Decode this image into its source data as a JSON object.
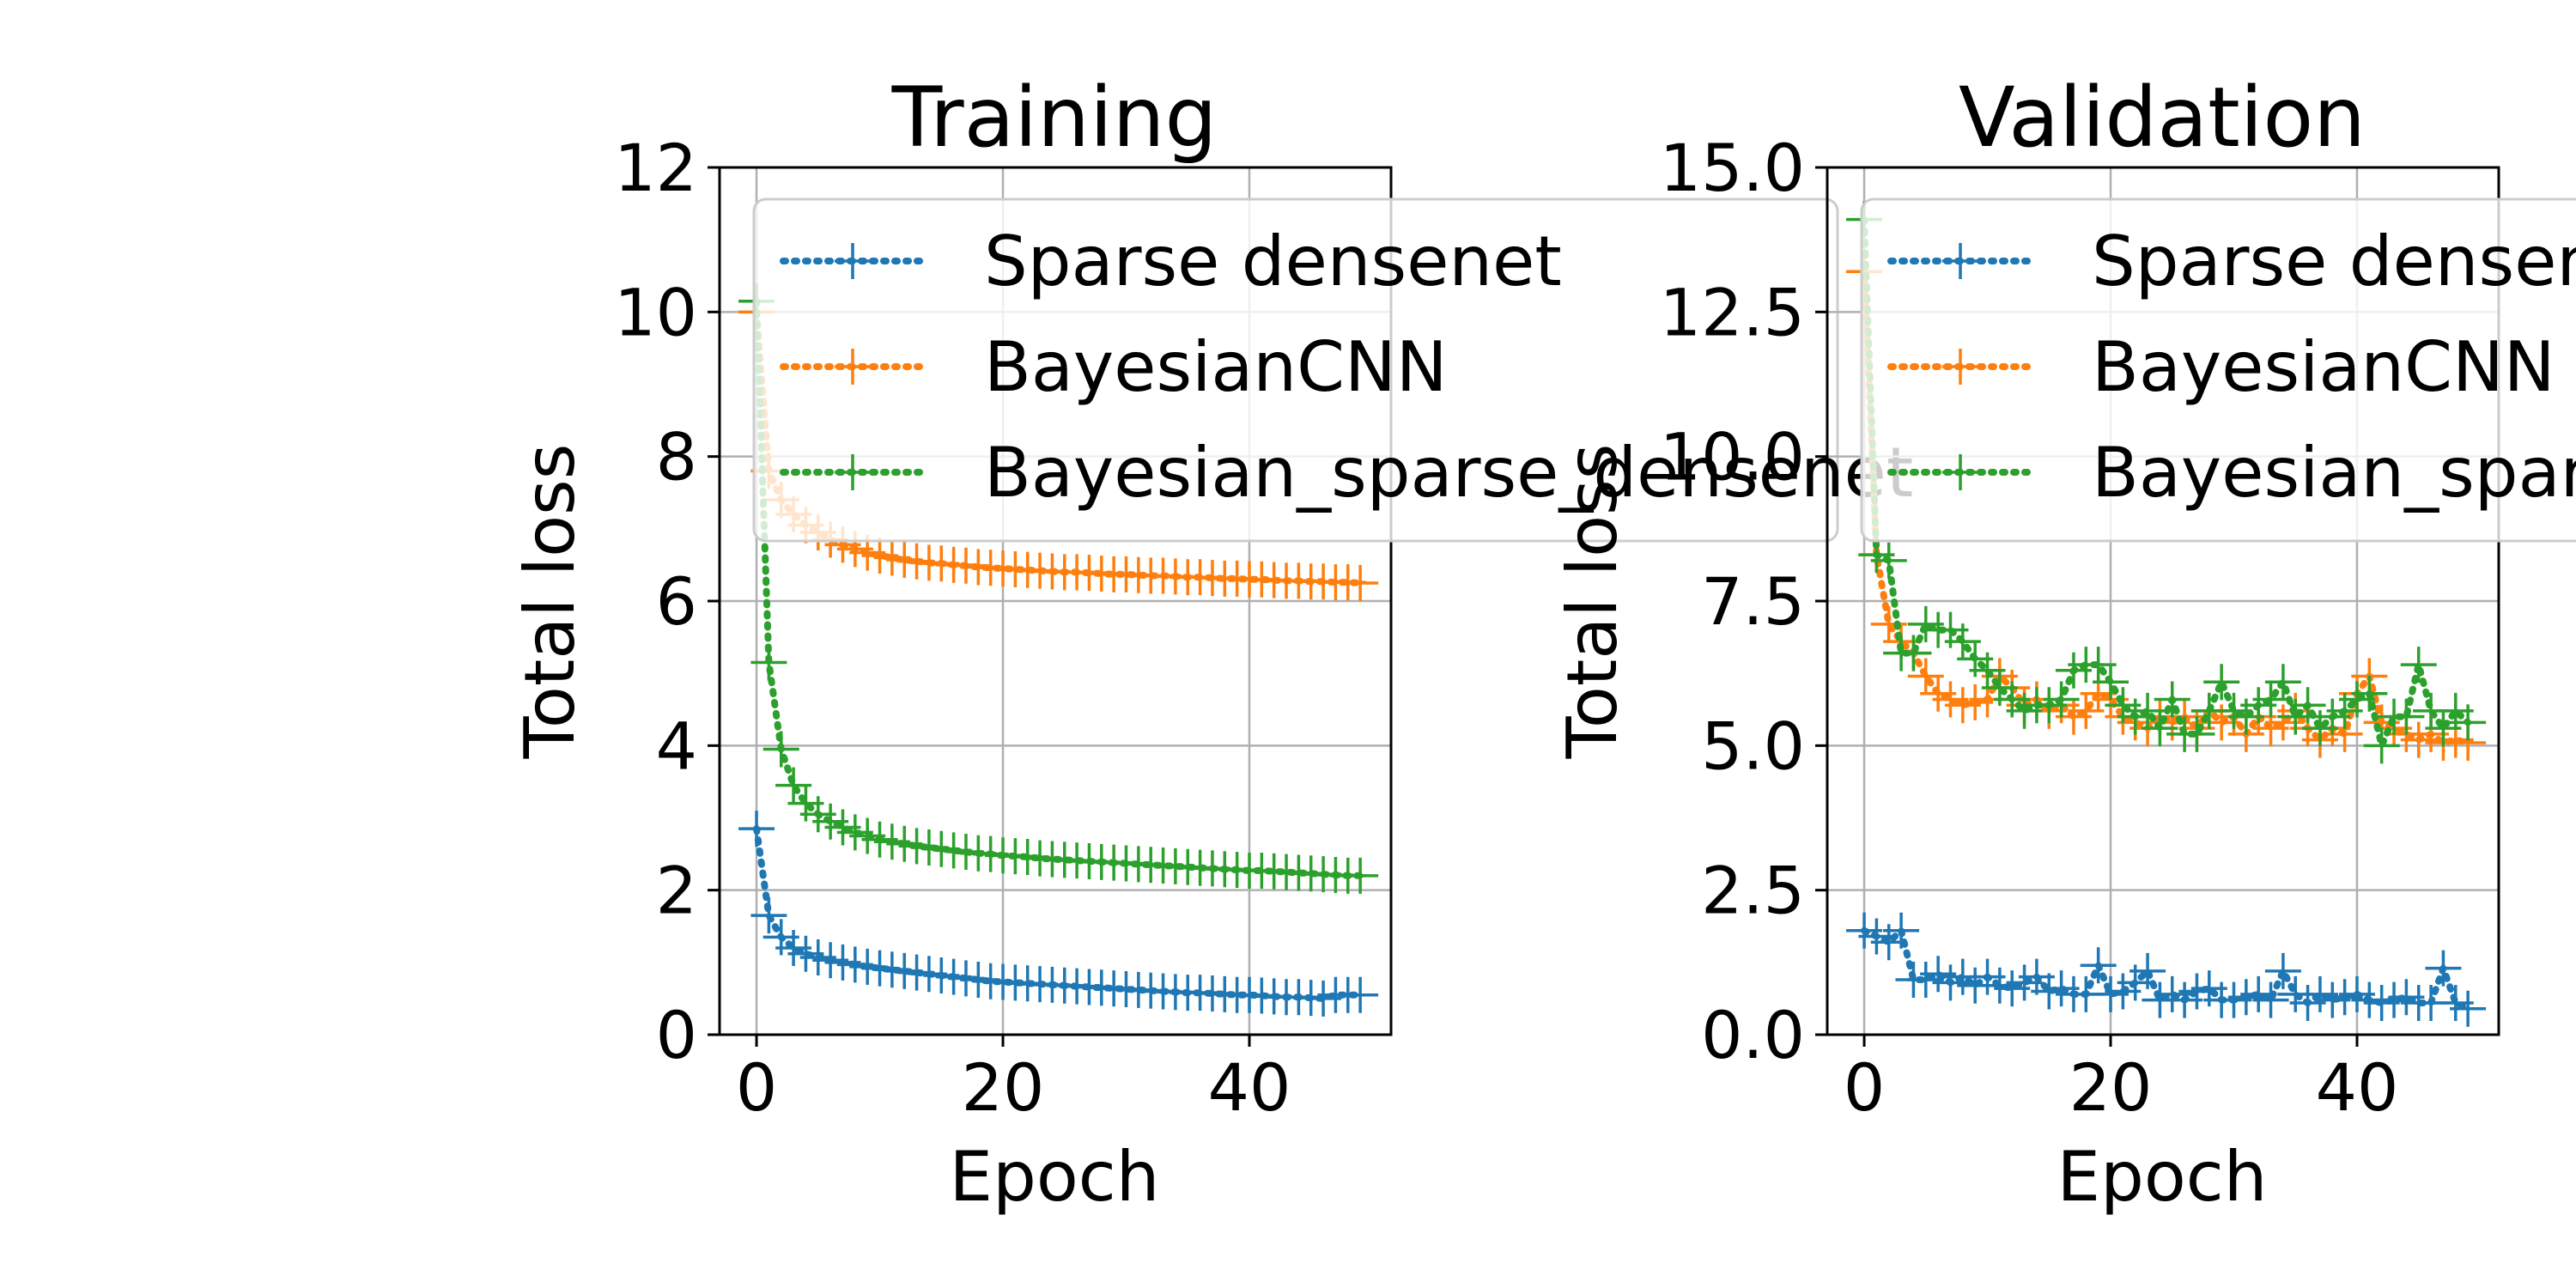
{
  "colors": {
    "sparse_densenet": "#1f77b4",
    "bayesian_cnn": "#ff7f0e",
    "bayesian_sparse_densenet": "#2ca02c",
    "grid": "#b0b0b0",
    "axes": "#000000"
  },
  "chart_data": [
    {
      "type": "line",
      "title": "Training",
      "xlabel": "Epoch",
      "ylabel": "Total loss",
      "xlim": [
        -3,
        51.5
      ],
      "ylim": [
        0,
        12
      ],
      "xticks": [
        0,
        20,
        40
      ],
      "yticks": [
        0,
        2,
        4,
        6,
        8,
        10,
        12
      ],
      "ytick_labels": [
        "0",
        "2",
        "4",
        "6",
        "8",
        "10",
        "12"
      ],
      "grid": true,
      "legend": {
        "position": "top-right",
        "entries": [
          "Sparse densenet",
          "BayesianCNN",
          "Bayesian_sparse_densenet"
        ]
      },
      "x": [
        0,
        1,
        2,
        3,
        4,
        5,
        6,
        7,
        8,
        9,
        10,
        11,
        12,
        13,
        14,
        15,
        16,
        17,
        18,
        19,
        20,
        21,
        22,
        23,
        24,
        25,
        26,
        27,
        28,
        29,
        30,
        31,
        32,
        33,
        34,
        35,
        36,
        37,
        38,
        39,
        40,
        41,
        42,
        43,
        44,
        45,
        46,
        47,
        48,
        49
      ],
      "series": [
        {
          "name": "Sparse densenet",
          "color": "#1f77b4",
          "values": [
            2.85,
            1.65,
            1.35,
            1.2,
            1.12,
            1.07,
            1.03,
            1.0,
            0.97,
            0.94,
            0.92,
            0.9,
            0.88,
            0.86,
            0.84,
            0.82,
            0.8,
            0.78,
            0.76,
            0.74,
            0.73,
            0.72,
            0.71,
            0.7,
            0.69,
            0.68,
            0.67,
            0.66,
            0.65,
            0.64,
            0.63,
            0.62,
            0.61,
            0.6,
            0.59,
            0.58,
            0.58,
            0.57,
            0.56,
            0.55,
            0.55,
            0.54,
            0.53,
            0.52,
            0.52,
            0.51,
            0.5,
            0.55,
            0.55,
            0.55
          ]
        },
        {
          "name": "BayesianCNN",
          "color": "#ff7f0e",
          "values": [
            10.0,
            7.8,
            7.4,
            7.2,
            7.05,
            6.95,
            6.85,
            6.78,
            6.72,
            6.67,
            6.63,
            6.6,
            6.57,
            6.55,
            6.53,
            6.52,
            6.5,
            6.49,
            6.47,
            6.46,
            6.45,
            6.44,
            6.43,
            6.42,
            6.41,
            6.4,
            6.4,
            6.39,
            6.38,
            6.37,
            6.37,
            6.36,
            6.35,
            6.35,
            6.34,
            6.33,
            6.33,
            6.32,
            6.31,
            6.31,
            6.3,
            6.3,
            6.29,
            6.28,
            6.28,
            6.27,
            6.27,
            6.26,
            6.26,
            6.25
          ]
        },
        {
          "name": "Bayesian_sparse_densenet",
          "color": "#2ca02c",
          "values": [
            10.15,
            5.15,
            3.95,
            3.45,
            3.2,
            3.05,
            2.95,
            2.87,
            2.8,
            2.75,
            2.7,
            2.67,
            2.64,
            2.61,
            2.59,
            2.57,
            2.55,
            2.53,
            2.51,
            2.5,
            2.48,
            2.47,
            2.46,
            2.44,
            2.43,
            2.42,
            2.41,
            2.4,
            2.39,
            2.38,
            2.37,
            2.36,
            2.35,
            2.34,
            2.33,
            2.32,
            2.31,
            2.3,
            2.29,
            2.28,
            2.27,
            2.27,
            2.26,
            2.25,
            2.24,
            2.23,
            2.22,
            2.21,
            2.2,
            2.2
          ]
        }
      ]
    },
    {
      "type": "line",
      "title": "Validation",
      "xlabel": "Epoch",
      "ylabel": "Total loss",
      "xlim": [
        -3,
        51.5
      ],
      "ylim": [
        0,
        15
      ],
      "xticks": [
        0,
        20,
        40
      ],
      "yticks": [
        0,
        2.5,
        5,
        7.5,
        10,
        12.5,
        15
      ],
      "ytick_labels": [
        "0.0",
        "2.5",
        "5.0",
        "7.5",
        "10.0",
        "12.5",
        "15.0"
      ],
      "grid": true,
      "legend": {
        "position": "top-right",
        "entries": [
          "Sparse densenet",
          "BayesianCNN",
          "Bayesian_sparse_densenet"
        ]
      },
      "x": [
        0,
        1,
        2,
        3,
        4,
        5,
        6,
        7,
        8,
        9,
        10,
        11,
        12,
        13,
        14,
        15,
        16,
        17,
        18,
        19,
        20,
        21,
        22,
        23,
        24,
        25,
        26,
        27,
        28,
        29,
        30,
        31,
        32,
        33,
        34,
        35,
        36,
        37,
        38,
        39,
        40,
        41,
        42,
        43,
        44,
        45,
        46,
        47,
        48,
        49
      ],
      "series": [
        {
          "name": "Sparse densenet",
          "color": "#1f77b4",
          "values": [
            1.8,
            1.7,
            1.6,
            1.8,
            0.95,
            0.95,
            1.05,
            0.9,
            1.0,
            0.85,
            1.0,
            0.85,
            0.8,
            0.9,
            1.0,
            0.75,
            0.8,
            0.7,
            0.7,
            1.2,
            0.7,
            0.75,
            0.9,
            1.1,
            0.6,
            0.7,
            0.6,
            0.75,
            0.8,
            0.6,
            0.6,
            0.65,
            0.7,
            0.6,
            1.1,
            0.7,
            0.55,
            0.7,
            0.6,
            0.65,
            0.7,
            0.6,
            0.55,
            0.6,
            0.65,
            0.55,
            0.55,
            1.15,
            0.55,
            0.45
          ]
        },
        {
          "name": "BayesianCNN",
          "color": "#ff7f0e",
          "values": [
            13.2,
            8.3,
            7.1,
            6.8,
            6.6,
            6.2,
            5.9,
            5.8,
            5.7,
            5.75,
            5.8,
            6.2,
            6.0,
            5.7,
            5.8,
            5.6,
            5.7,
            5.5,
            5.6,
            5.9,
            5.8,
            5.5,
            5.4,
            5.3,
            5.5,
            5.4,
            5.5,
            5.3,
            5.6,
            5.4,
            5.5,
            5.2,
            5.5,
            5.3,
            5.4,
            5.6,
            5.3,
            5.1,
            5.3,
            5.2,
            5.9,
            6.2,
            5.4,
            5.3,
            5.2,
            5.1,
            5.2,
            5.05,
            5.1,
            5.05
          ]
        },
        {
          "name": "Bayesian_sparse_densenet",
          "color": "#2ca02c",
          "values": [
            14.1,
            8.3,
            8.2,
            6.6,
            6.6,
            7.1,
            7.0,
            7.0,
            6.8,
            6.5,
            6.3,
            6.0,
            5.8,
            5.6,
            5.7,
            5.7,
            5.8,
            6.3,
            6.4,
            6.4,
            6.1,
            5.7,
            5.5,
            5.6,
            5.3,
            5.8,
            5.2,
            5.2,
            5.6,
            6.1,
            5.6,
            5.5,
            5.7,
            5.8,
            6.1,
            5.5,
            5.7,
            5.3,
            5.5,
            5.6,
            5.8,
            5.9,
            5.0,
            5.5,
            5.5,
            6.4,
            5.6,
            5.3,
            5.6,
            5.4
          ]
        }
      ]
    }
  ]
}
